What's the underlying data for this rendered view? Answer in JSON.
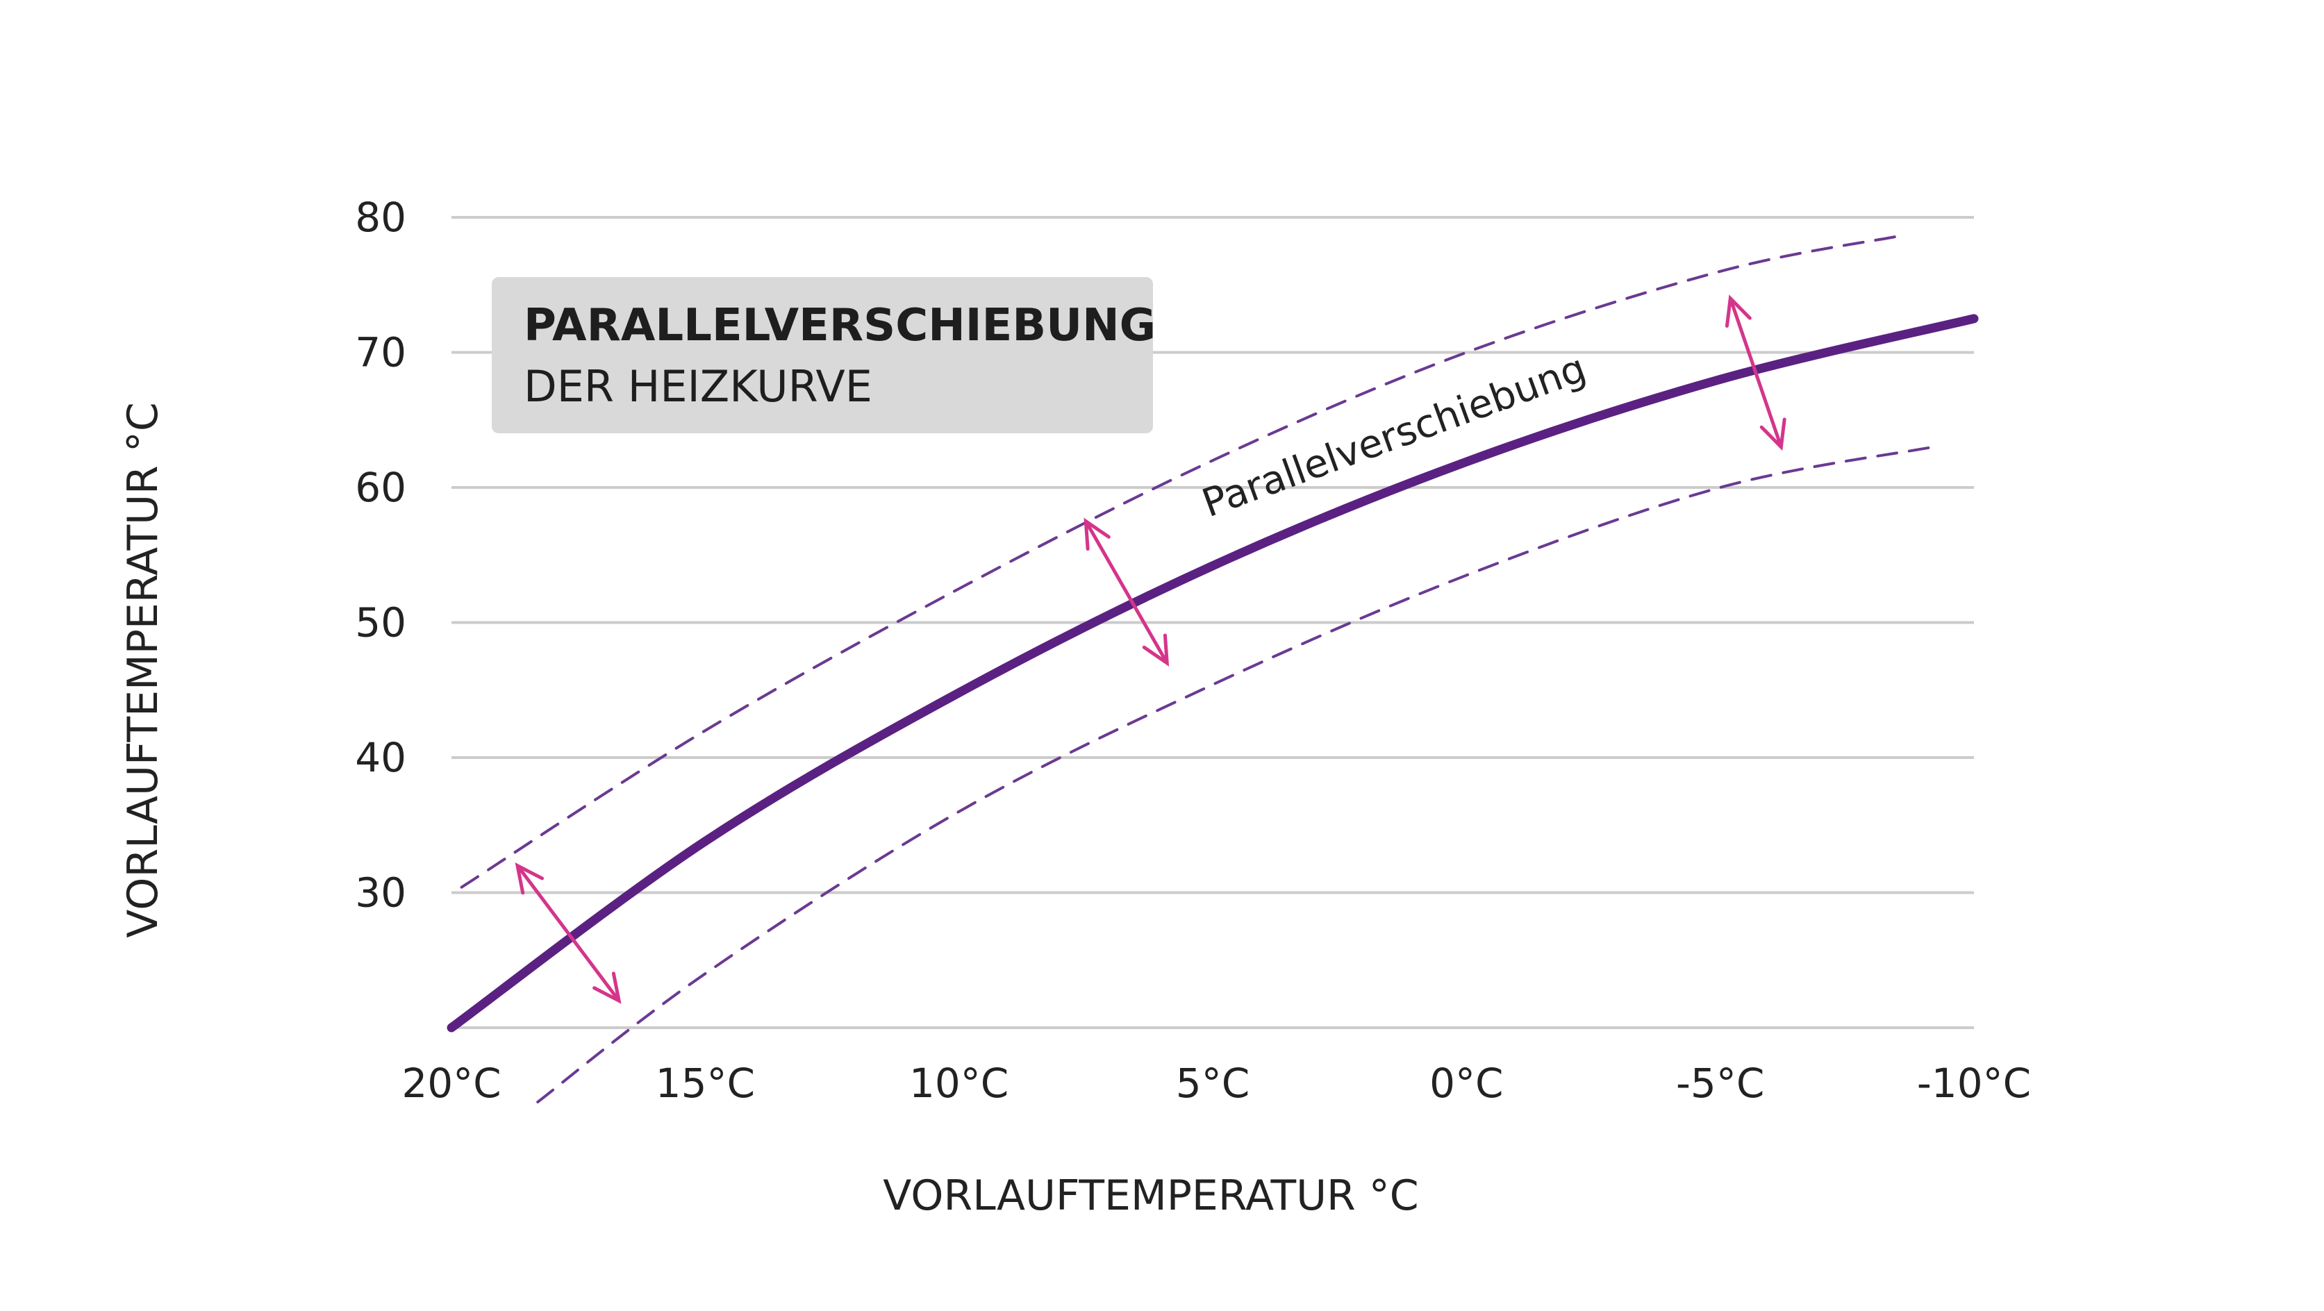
{
  "chart_data": {
    "type": "line",
    "title": "PARALLELVERSCHIEBUNG",
    "subtitle": "DER HEIZKURVE",
    "xlabel": "VORLAUFTEMPERATUR °C",
    "ylabel": "VORLAUFTEMPERATUR °C",
    "xlim": [
      20,
      -10
    ],
    "ylim": [
      20,
      80
    ],
    "x_ticks": [
      20,
      15,
      10,
      5,
      0,
      -5,
      -10
    ],
    "x_tick_labels": [
      "20°C",
      "15°C",
      "10°C",
      "5°C",
      "0°C",
      "-5°C",
      "-10°C"
    ],
    "y_ticks": [
      30,
      40,
      50,
      60,
      70,
      80
    ],
    "y_tick_labels": [
      "30",
      "40",
      "50",
      "60",
      "70",
      "80"
    ],
    "grid": "horizontal",
    "series": [
      {
        "style": "solid",
        "color": "#5b2182",
        "x": [
          20,
          15,
          10,
          5,
          0,
          -5,
          -10
        ],
        "y": [
          20,
          33.8,
          44.8,
          54.2,
          61.9,
          68,
          72.5
        ]
      },
      {
        "style": "dashed",
        "color": "#6a3a92",
        "x": [
          19.8,
          15,
          10,
          5,
          0,
          -5,
          -8.5
        ],
        "y": [
          30.4,
          42,
          52.5,
          62,
          70,
          76,
          78.6
        ]
      },
      {
        "style": "dashed",
        "color": "#6a3a92",
        "x": [
          18.3,
          15,
          10,
          5,
          0,
          -5,
          -9.2
        ],
        "y": [
          14.5,
          24,
          36,
          45.4,
          53.5,
          60,
          63
        ]
      }
    ],
    "annotations": {
      "label": "Parallelverschiebung",
      "label_color": "#222222",
      "arrow_color": "#d4358a",
      "arrows": [
        {
          "from": [
            18.7,
            32
          ],
          "to": [
            16.7,
            22
          ]
        },
        {
          "from": [
            7.5,
            57.5
          ],
          "to": [
            5.9,
            47
          ]
        },
        {
          "from": [
            -5.2,
            74
          ],
          "to": [
            -6.2,
            63
          ]
        }
      ]
    },
    "colors": {
      "grid": "#cccccc",
      "box": "#d9d9d9",
      "curve": "#5b2182",
      "arrows": "#d4358a"
    }
  }
}
